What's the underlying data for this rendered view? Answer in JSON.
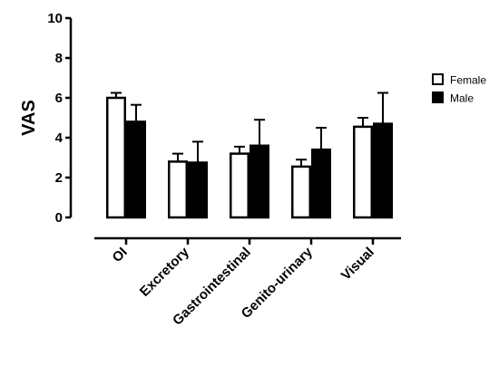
{
  "chart_data": {
    "type": "bar",
    "title": "",
    "xlabel": "",
    "ylabel": "VAS",
    "ylim": [
      0,
      10
    ],
    "yticks": [
      "0",
      "2",
      "4",
      "6",
      "8",
      "10"
    ],
    "categories": [
      "OI",
      "Excretory",
      "Gastrointestinal",
      "Genito-urinary",
      "Visual"
    ],
    "series": [
      {
        "name": "Female",
        "fill": "#ffffff",
        "values": [
          6.0,
          2.8,
          3.2,
          2.55,
          4.55
        ],
        "errors": [
          0.25,
          0.4,
          0.35,
          0.35,
          0.45
        ]
      },
      {
        "name": "Male",
        "fill": "#000000",
        "values": [
          4.8,
          2.75,
          3.6,
          3.4,
          4.7
        ],
        "errors": [
          0.85,
          1.05,
          1.3,
          1.1,
          1.55
        ]
      }
    ],
    "legend_position": "right",
    "grid": false
  }
}
